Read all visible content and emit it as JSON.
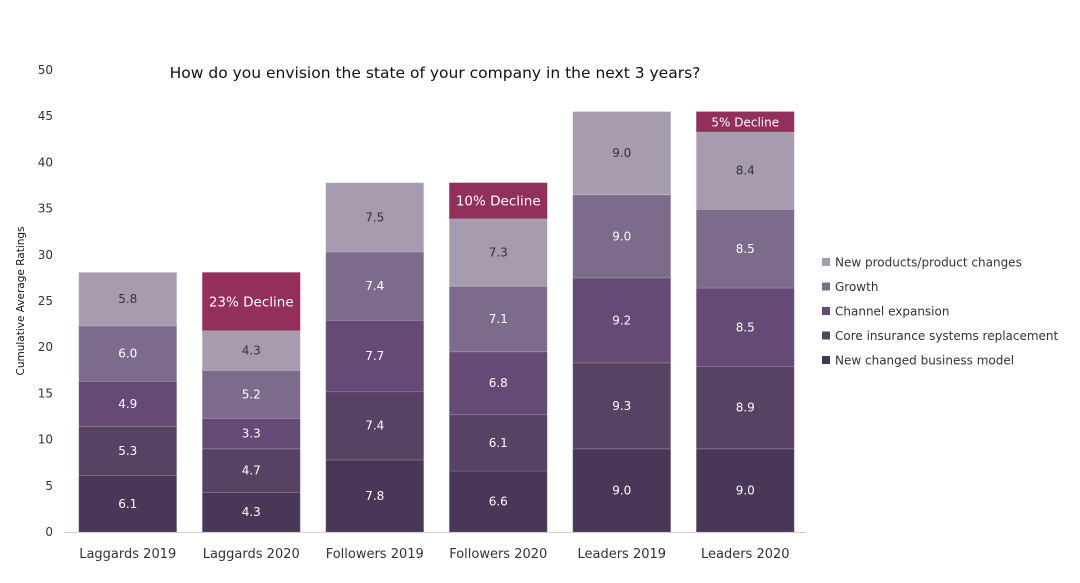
{
  "chart_data": {
    "type": "bar",
    "stacked": true,
    "title": "How do you envision the state of your company in the next 3 years?",
    "xlabel": "",
    "ylabel": "Cumulative Average Ratings",
    "ylim": [
      0,
      50
    ],
    "yticks": [
      0,
      5,
      10,
      15,
      20,
      25,
      30,
      35,
      40,
      45,
      50
    ],
    "grid": false,
    "legend": "right",
    "categories": [
      "Laggards 2019",
      "Laggards 2020",
      "Followers 2019",
      "Followers 2020",
      "Leaders 2019",
      "Leaders 2020"
    ],
    "series": [
      {
        "name": "New changed business model",
        "color": "#4a3656",
        "values": [
          6.1,
          4.3,
          7.8,
          6.6,
          9.0,
          9.0
        ]
      },
      {
        "name": "Core insurance systems replacement",
        "color": "#574263",
        "values": [
          5.3,
          4.7,
          7.4,
          6.1,
          9.3,
          8.9
        ]
      },
      {
        "name": "Channel expansion",
        "color": "#644a74",
        "values": [
          4.9,
          3.3,
          7.7,
          6.8,
          9.2,
          8.5
        ]
      },
      {
        "name": "Growth",
        "color": "#7d6b8c",
        "values": [
          6.0,
          5.2,
          7.4,
          7.1,
          9.0,
          8.5
        ]
      },
      {
        "name": "New products/product changes",
        "color": "#a79bb0",
        "values": [
          5.8,
          4.3,
          7.5,
          7.3,
          9.0,
          8.4
        ]
      }
    ],
    "annotations": [
      {
        "category": "Laggards 2020",
        "text": "23% Decline",
        "value": 6.3,
        "color": "#922f5a"
      },
      {
        "category": "Followers 2020",
        "text": "10% Decline",
        "value": 3.9,
        "color": "#922f5a"
      },
      {
        "category": "Leaders 2020",
        "text": "5% Decline",
        "value": 2.2,
        "color": "#922f5a"
      }
    ]
  }
}
